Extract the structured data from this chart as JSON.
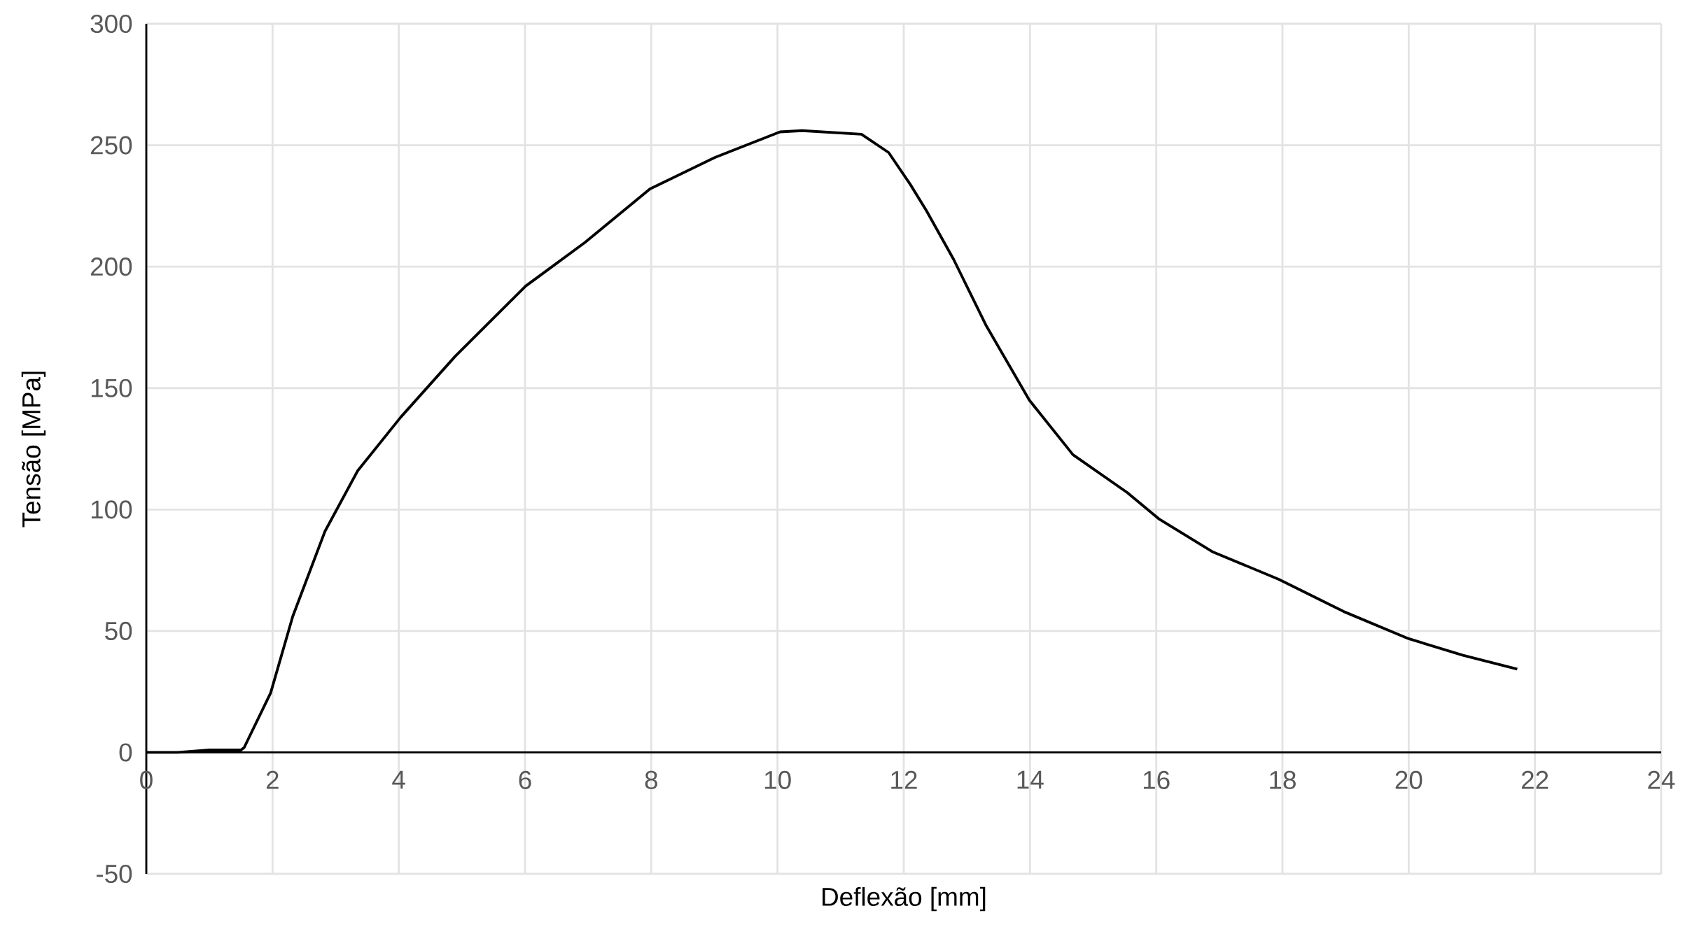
{
  "chart_data": {
    "type": "line",
    "xlabel": "Deflexão [mm]",
    "ylabel": "Tensão [MPa]",
    "x": [
      0,
      0.5,
      1.0,
      1.5,
      1.55,
      1.97,
      2.32,
      2.83,
      3.35,
      4.03,
      4.89,
      6.01,
      6.95,
      7.98,
      9.01,
      10.04,
      10.39,
      11.33,
      11.76,
      12.1,
      12.36,
      12.79,
      13.3,
      13.99,
      14.68,
      15.54,
      16.05,
      16.9,
      17.94,
      18.97,
      20.0,
      20.86,
      21.72
    ],
    "series": [
      {
        "color": "#000000",
        "values": [
          0,
          0,
          1,
          1,
          2,
          24.5,
          56,
          91,
          116,
          138,
          163,
          192,
          210,
          232,
          245,
          255.5,
          256,
          254.5,
          247,
          234,
          223,
          203,
          176,
          145,
          122.6,
          107,
          96,
          82.5,
          71.3,
          58,
          46.8,
          40,
          34.3
        ]
      }
    ],
    "xlim": [
      0,
      24
    ],
    "ylim": [
      -50,
      300
    ],
    "xticks": [
      0,
      2,
      4,
      6,
      8,
      10,
      12,
      14,
      16,
      18,
      20,
      22,
      24
    ],
    "yticks": [
      -50,
      0,
      50,
      100,
      150,
      200,
      250,
      300
    ],
    "grid": true
  }
}
